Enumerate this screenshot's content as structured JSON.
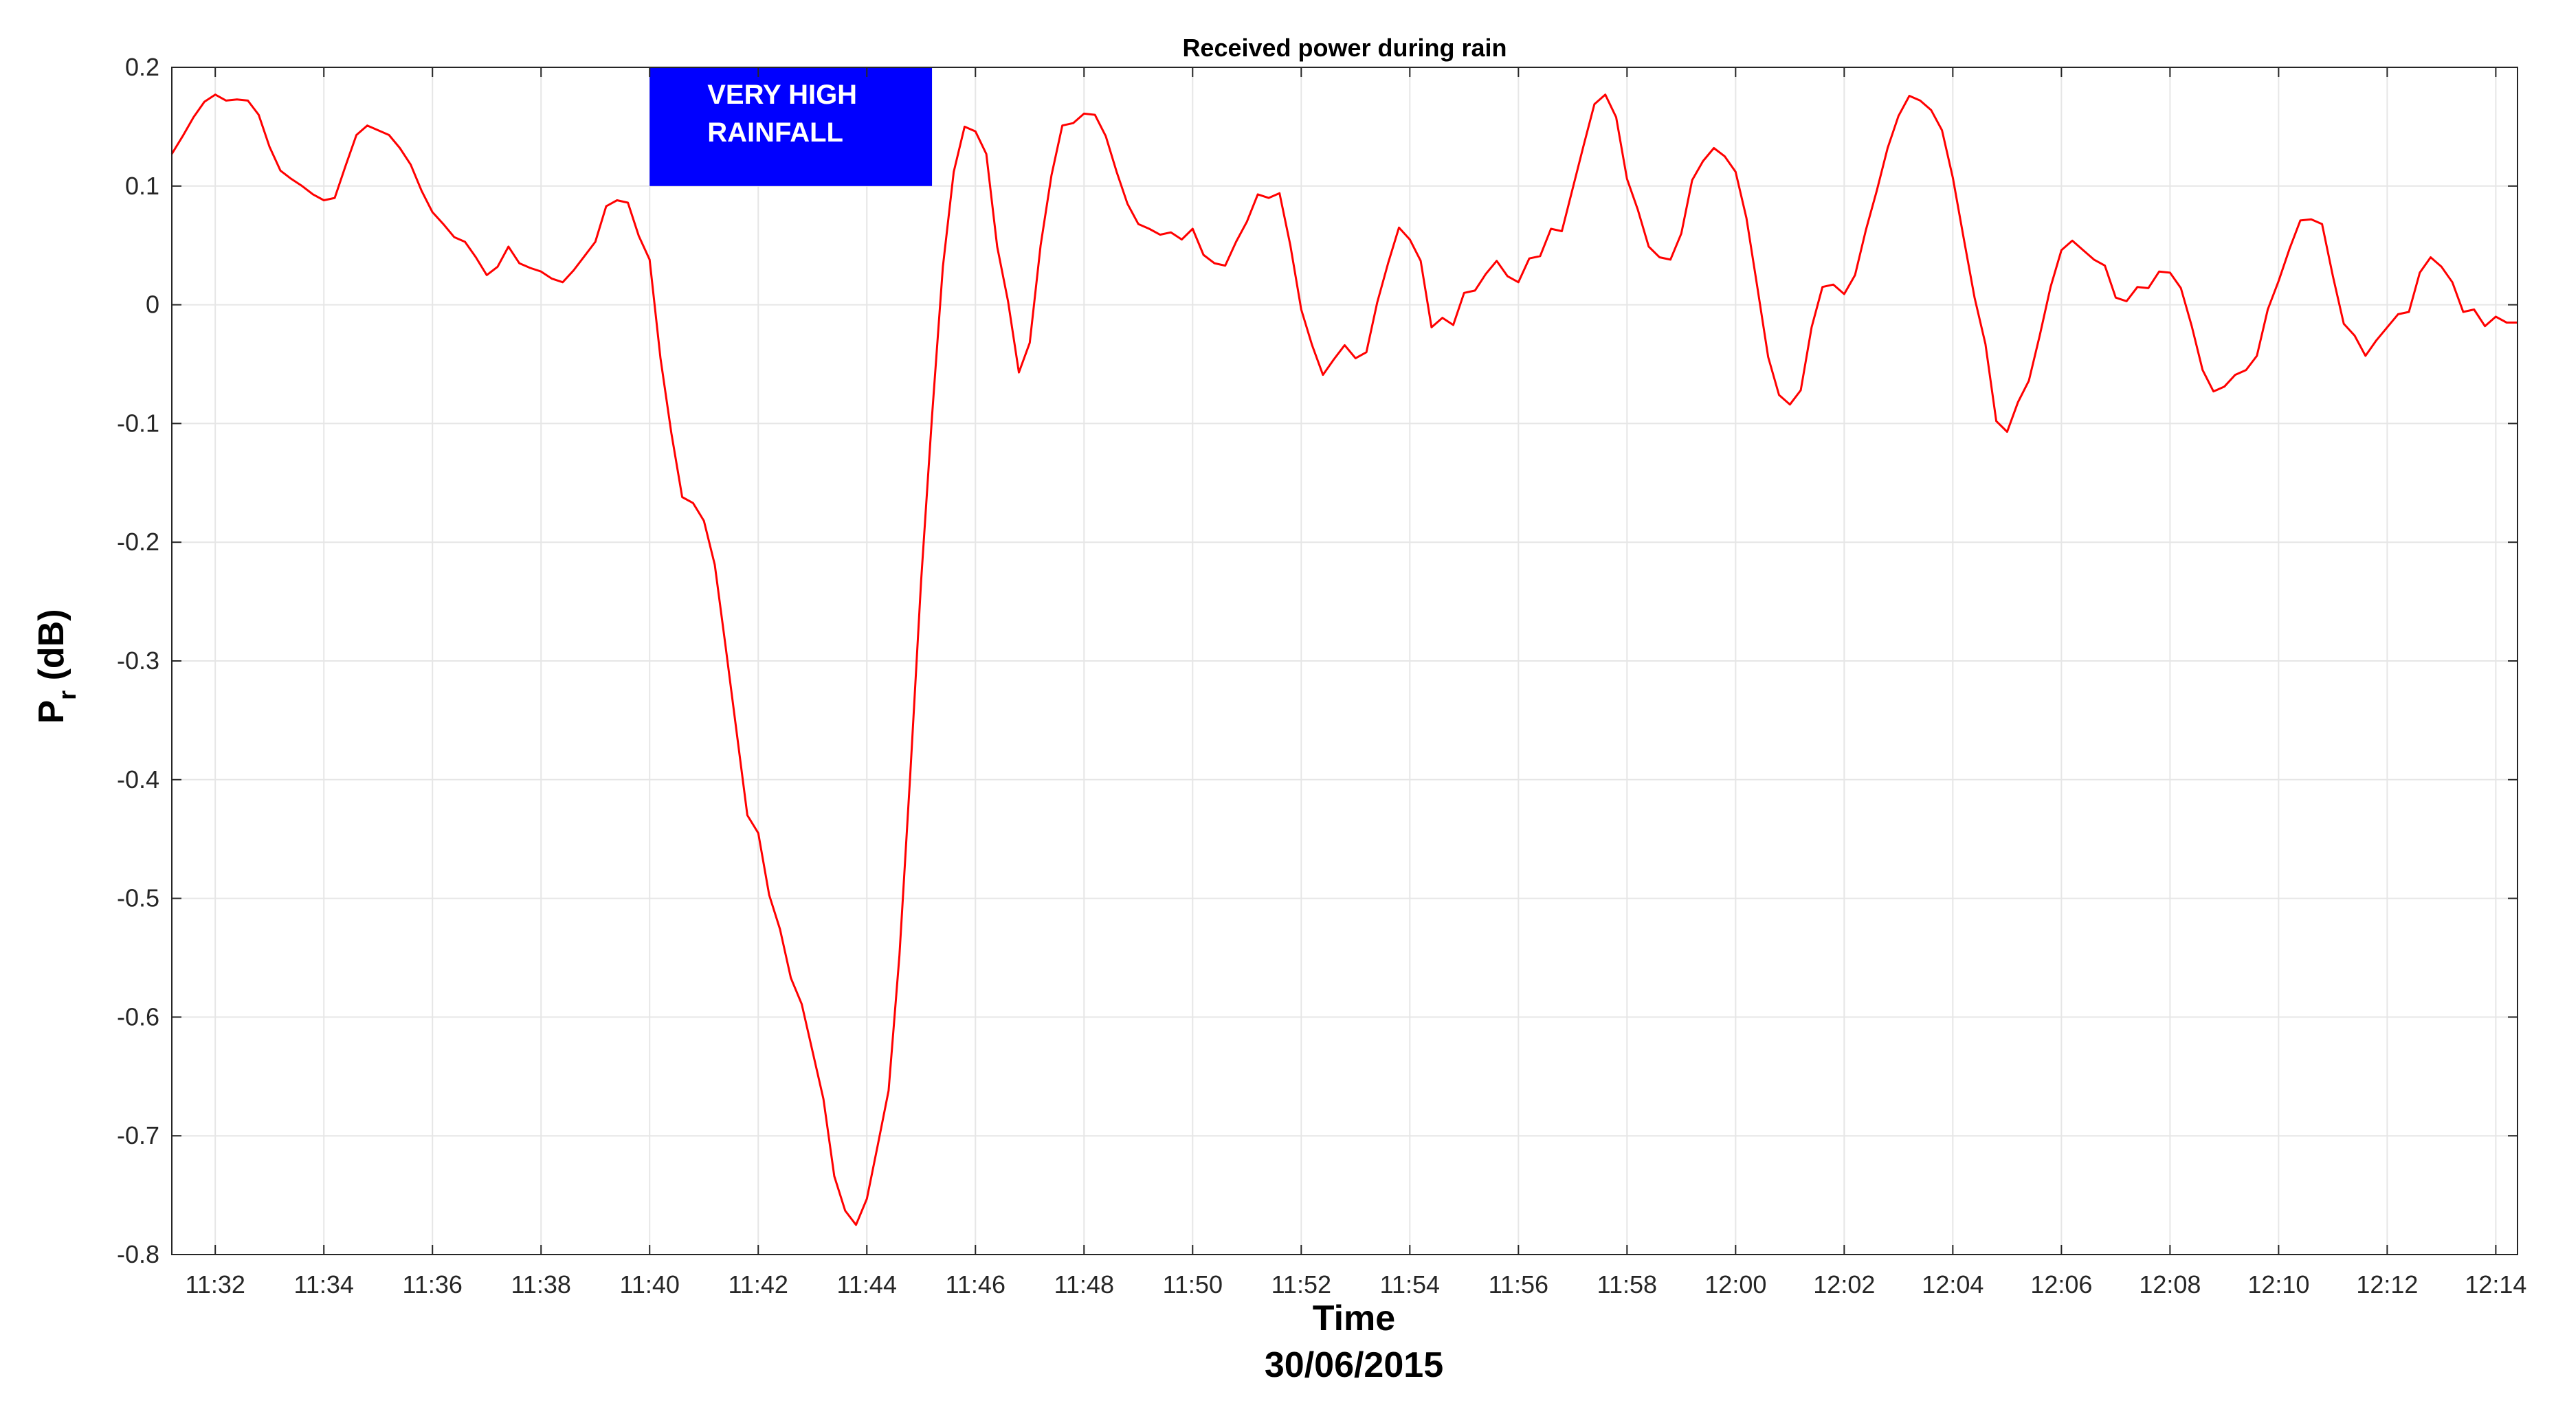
{
  "chart_data": {
    "type": "line",
    "title": "Received power during rain",
    "xlabel": "Time",
    "xlabel_sub": "30/06/2015",
    "ylabel": "P",
    "ylabel_sub": "r",
    "ylabel_unit": " (dB)",
    "xlim": [
      "11:31:12",
      "12:14:24"
    ],
    "ylim": [
      -0.8,
      0.2
    ],
    "grid": true,
    "colors": {
      "series": "#ff0000",
      "annotation_fill": "#0000ff",
      "annotation_text": "#ffffff",
      "grid": "#e6e6e6",
      "axis": "#262626"
    },
    "x_ticks": [
      "11:32",
      "11:34",
      "11:36",
      "11:38",
      "11:40",
      "11:42",
      "11:44",
      "11:46",
      "11:48",
      "11:50",
      "11:52",
      "11:54",
      "11:56",
      "11:58",
      "12:00",
      "12:02",
      "12:04",
      "12:06",
      "12:08",
      "12:10",
      "12:12",
      "12:14"
    ],
    "y_ticks": [
      "0.2",
      "0.1",
      "0",
      "-0.1",
      "-0.2",
      "-0.3",
      "-0.4",
      "-0.5",
      "-0.6",
      "-0.7",
      "-0.8"
    ],
    "annotation": {
      "line1": "VERY HIGH",
      "line2": "RAINFALL",
      "x_start": "11:40:00",
      "x_end": "11:45:12",
      "y_top": 0.2,
      "y_bottom": 0.1
    },
    "series": [
      {
        "x": [
          "11:31:12",
          "11:31:24",
          "11:31:36",
          "11:31:48",
          "11:32:00",
          "11:32:12",
          "11:32:24",
          "11:32:36",
          "11:32:48",
          "11:33:00",
          "11:33:12",
          "11:33:24",
          "11:33:36",
          "11:33:48",
          "11:34:00",
          "11:34:12",
          "11:34:24",
          "11:34:36",
          "11:34:48",
          "11:35:00",
          "11:35:12",
          "11:35:24",
          "11:35:36",
          "11:35:48",
          "11:36:00",
          "11:36:12",
          "11:36:24",
          "11:36:36",
          "11:36:48",
          "11:37:00",
          "11:37:12",
          "11:37:24",
          "11:37:36",
          "11:37:48",
          "11:38:00",
          "11:38:12",
          "11:38:24",
          "11:38:36",
          "11:38:48",
          "11:39:00",
          "11:39:12",
          "11:39:24",
          "11:39:36",
          "11:39:48",
          "11:40:00",
          "11:40:12",
          "11:40:24",
          "11:40:36",
          "11:40:48",
          "11:41:00",
          "11:41:12",
          "11:41:24",
          "11:41:36",
          "11:41:48",
          "11:42:00",
          "11:42:12",
          "11:42:24",
          "11:42:36",
          "11:42:48",
          "11:43:00",
          "11:43:12",
          "11:43:24",
          "11:43:36",
          "11:43:48",
          "11:44:00",
          "11:44:12",
          "11:44:24",
          "11:44:36",
          "11:44:48",
          "11:45:00",
          "11:45:12",
          "11:45:24",
          "11:45:36",
          "11:45:48",
          "11:46:00",
          "11:46:12",
          "11:46:24",
          "11:46:36",
          "11:46:48",
          "11:47:00",
          "11:47:12",
          "11:47:24",
          "11:47:36",
          "11:47:48",
          "11:48:00",
          "11:48:12",
          "11:48:24",
          "11:48:36",
          "11:48:48",
          "11:49:00",
          "11:49:12",
          "11:49:24",
          "11:49:36",
          "11:49:48",
          "11:50:00",
          "11:50:12",
          "11:50:24",
          "11:50:36",
          "11:50:48",
          "11:51:00",
          "11:51:12",
          "11:51:24",
          "11:51:36",
          "11:51:48",
          "11:52:00",
          "11:52:12",
          "11:52:24",
          "11:52:36",
          "11:52:48",
          "11:53:00",
          "11:53:12",
          "11:53:24",
          "11:53:36",
          "11:53:48",
          "11:54:00",
          "11:54:12",
          "11:54:24",
          "11:54:36",
          "11:54:48",
          "11:55:00",
          "11:55:12",
          "11:55:24",
          "11:55:36",
          "11:55:48",
          "11:56:00",
          "11:56:12",
          "11:56:24",
          "11:56:36",
          "11:56:48",
          "11:57:00",
          "11:57:12",
          "11:57:24",
          "11:57:36",
          "11:57:48",
          "11:58:00",
          "11:58:12",
          "11:58:24",
          "11:58:36",
          "11:58:48",
          "11:59:00",
          "11:59:12",
          "11:59:24",
          "11:59:36",
          "11:59:48",
          "12:00:00",
          "12:00:12",
          "12:00:24",
          "12:00:36",
          "12:00:48",
          "12:01:00",
          "12:01:12",
          "12:01:24",
          "12:01:36",
          "12:01:48",
          "12:02:00",
          "12:02:12",
          "12:02:24",
          "12:02:36",
          "12:02:48",
          "12:03:00",
          "12:03:12",
          "12:03:24",
          "12:03:36",
          "12:03:48",
          "12:04:00",
          "12:04:12",
          "12:04:24",
          "12:04:36",
          "12:04:48",
          "12:05:00",
          "12:05:12",
          "12:05:24",
          "12:05:36",
          "12:05:48",
          "12:06:00",
          "12:06:12",
          "12:06:24",
          "12:06:36",
          "12:06:48",
          "12:07:00",
          "12:07:12",
          "12:07:24",
          "12:07:36",
          "12:07:48",
          "12:08:00",
          "12:08:12",
          "12:08:24",
          "12:08:36",
          "12:08:48",
          "12:09:00",
          "12:09:12",
          "12:09:24",
          "12:09:36",
          "12:09:48",
          "12:10:00",
          "12:10:12",
          "12:10:24",
          "12:10:36",
          "12:10:48",
          "12:11:00",
          "12:11:12",
          "12:11:24",
          "12:11:36",
          "12:11:48",
          "12:12:00",
          "12:12:12",
          "12:12:24",
          "12:12:36",
          "12:12:48",
          "12:13:00",
          "12:13:12",
          "12:13:24",
          "12:13:36",
          "12:13:48",
          "12:14:00",
          "12:14:12",
          "12:14:24"
        ],
        "y": [
          0.127,
          0.142,
          0.158,
          0.171,
          0.177,
          0.172,
          0.173,
          0.172,
          0.16,
          0.133,
          0.113,
          0.106,
          0.1,
          0.093,
          0.088,
          0.09,
          0.117,
          0.143,
          0.151,
          0.147,
          0.143,
          0.132,
          0.118,
          0.096,
          0.078,
          0.068,
          0.057,
          0.053,
          0.04,
          0.025,
          0.032,
          0.049,
          0.035,
          0.031,
          0.028,
          0.022,
          0.019,
          0.029,
          0.041,
          0.053,
          0.083,
          0.088,
          0.086,
          0.058,
          0.038,
          -0.045,
          -0.108,
          -0.162,
          -0.167,
          -0.182,
          -0.219,
          -0.288,
          -0.359,
          -0.43,
          -0.445,
          -0.497,
          -0.526,
          -0.567,
          -0.589,
          -0.629,
          -0.669,
          -0.734,
          -0.763,
          -0.775,
          -0.753,
          -0.708,
          -0.662,
          -0.548,
          -0.395,
          -0.232,
          -0.094,
          0.032,
          0.112,
          0.15,
          0.146,
          0.127,
          0.049,
          0.003,
          -0.057,
          -0.032,
          0.05,
          0.109,
          0.151,
          0.153,
          0.161,
          0.16,
          0.142,
          0.112,
          0.085,
          0.068,
          0.064,
          0.059,
          0.061,
          0.055,
          0.064,
          0.042,
          0.035,
          0.033,
          0.053,
          0.07,
          0.093,
          0.09,
          0.094,
          0.05,
          -0.004,
          -0.034,
          -0.059,
          -0.046,
          -0.034,
          -0.045,
          -0.04,
          0.002,
          0.035,
          0.065,
          0.055,
          0.037,
          -0.019,
          -0.011,
          -0.017,
          0.01,
          0.012,
          0.026,
          0.037,
          0.024,
          0.019,
          0.039,
          0.041,
          0.064,
          0.062,
          0.098,
          0.134,
          0.169,
          0.177,
          0.158,
          0.106,
          0.08,
          0.049,
          0.04,
          0.038,
          0.06,
          0.105,
          0.121,
          0.132,
          0.125,
          0.112,
          0.073,
          0.015,
          -0.044,
          -0.076,
          -0.084,
          -0.072,
          -0.019,
          0.015,
          0.017,
          0.009,
          0.025,
          0.063,
          0.096,
          0.132,
          0.159,
          0.176,
          0.172,
          0.164,
          0.147,
          0.107,
          0.056,
          0.006,
          -0.033,
          -0.098,
          -0.107,
          -0.082,
          -0.064,
          -0.026,
          0.015,
          0.046,
          0.054,
          0.046,
          0.038,
          0.033,
          0.006,
          0.003,
          0.015,
          0.014,
          0.028,
          0.027,
          0.014,
          -0.018,
          -0.055,
          -0.073,
          -0.069,
          -0.059,
          -0.055,
          -0.043,
          -0.004,
          0.02,
          0.047,
          0.071,
          0.072,
          0.068,
          0.024,
          -0.016,
          -0.026,
          -0.043,
          -0.03,
          -0.019,
          -0.008,
          -0.006,
          0.027,
          0.04,
          0.032,
          0.019,
          -0.006,
          -0.004,
          -0.018,
          -0.01,
          -0.015,
          -0.015
        ]
      }
    ]
  }
}
